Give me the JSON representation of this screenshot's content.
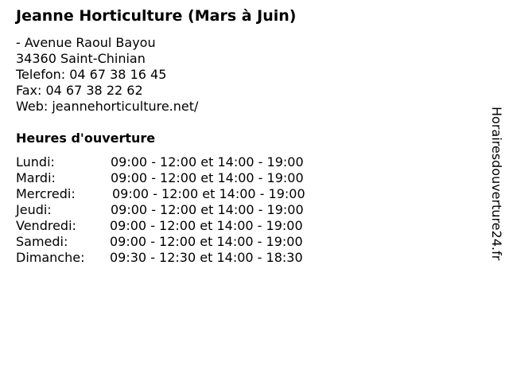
{
  "title": "Jeanne Horticulture (Mars à Juin)",
  "address": {
    "street": "- Avenue Raoul Bayou",
    "city": "34360 Saint-Chinian",
    "phone": "Telefon: 04 67 38 16 45",
    "fax": "Fax: 04 67 38 22 62",
    "web": "Web: jeannehorticulture.net/"
  },
  "hours_heading": "Heures d'ouverture",
  "hours": [
    {
      "day": "Lundi:",
      "time": "09:00 - 12:00 et 14:00 - 19:00"
    },
    {
      "day": "Mardi:",
      "time": "09:00 - 12:00 et 14:00 - 19:00"
    },
    {
      "day": "Mercredi:",
      "time": "09:00 - 12:00 et 14:00 - 19:00"
    },
    {
      "day": "Jeudi:",
      "time": "09:00 - 12:00 et 14:00 - 19:00"
    },
    {
      "day": "Vendredi:",
      "time": "09:00 - 12:00 et 14:00 - 19:00"
    },
    {
      "day": "Samedi:",
      "time": "09:00 - 12:00 et 14:00 - 19:00"
    },
    {
      "day": "Dimanche:",
      "time": "09:30 - 12:30 et 14:00 - 18:30"
    }
  ],
  "brand": "Horairesdouverture24.fr"
}
